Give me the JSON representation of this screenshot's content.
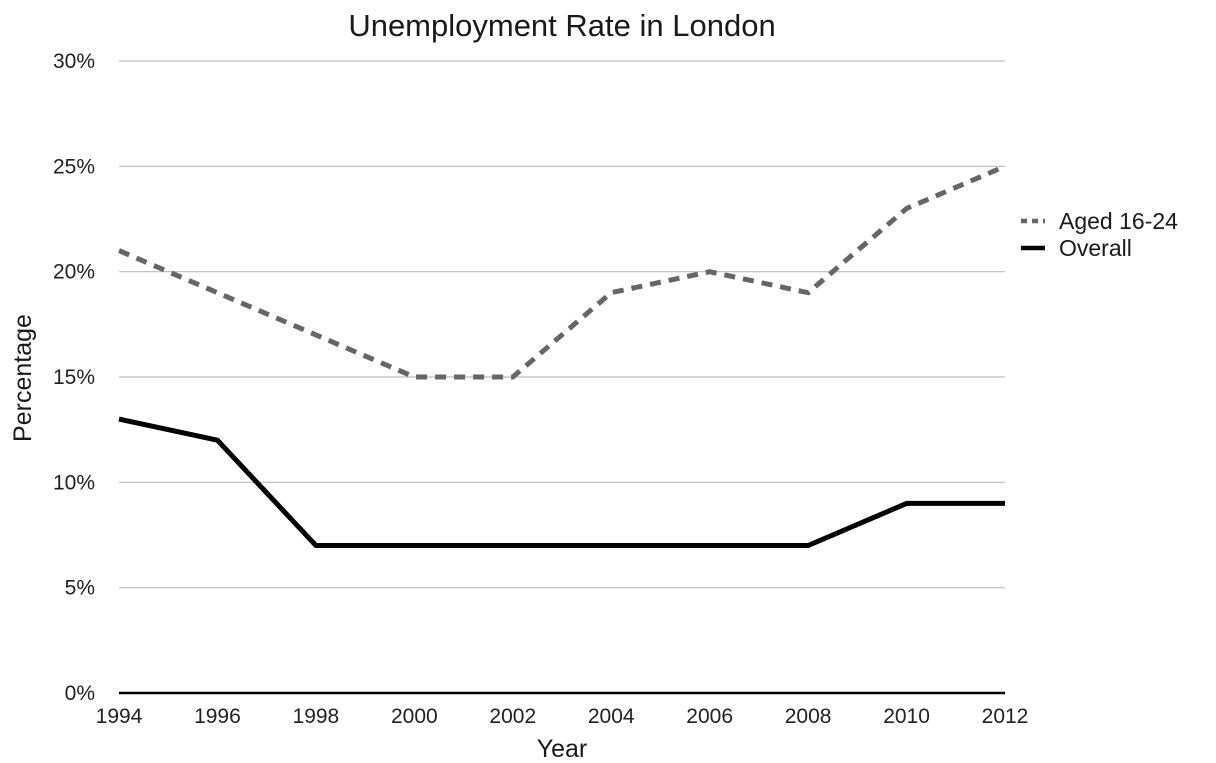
{
  "chart_data": {
    "type": "line",
    "title": "Unemployment Rate in London",
    "xlabel": "Year",
    "ylabel": "Percentage",
    "x": [
      1994,
      1996,
      1998,
      2000,
      2002,
      2004,
      2006,
      2008,
      2010,
      2012
    ],
    "x_tick_labels": [
      "1994",
      "1996",
      "1998",
      "2000",
      "2002",
      "2004",
      "2006",
      "2008",
      "2010",
      "2012"
    ],
    "ylim": [
      0,
      30
    ],
    "y_ticks": [
      0,
      5,
      10,
      15,
      20,
      25,
      30
    ],
    "y_tick_labels": [
      "0%",
      "5%",
      "10%",
      "15%",
      "20%",
      "25%",
      "30%"
    ],
    "grid": "horizontal",
    "legend_position": "right",
    "series": [
      {
        "name": "Aged 16-24",
        "values": [
          21,
          19,
          17,
          15,
          15,
          19,
          20,
          19,
          23,
          25
        ],
        "color": "#666666",
        "style": "dashed"
      },
      {
        "name": "Overall",
        "values": [
          13,
          12,
          7,
          7,
          7,
          7,
          7,
          7,
          9,
          9
        ],
        "color": "#000000",
        "style": "solid"
      }
    ]
  }
}
